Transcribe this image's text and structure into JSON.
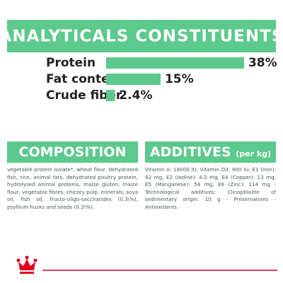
{
  "chart_data": {
    "type": "bar",
    "title": "ANALYTICALS CONSTITUENTS",
    "categories": [
      "Protein",
      "Fat content",
      "Crude fiber"
    ],
    "values": [
      38,
      15,
      2.4
    ],
    "value_labels": [
      "38%",
      "15%",
      "2.4%"
    ],
    "color": "#5cc98d"
  },
  "composition": {
    "title": "COMPOSITION",
    "text": "vegetable protein isolate*, wheat flour, dehydrated fish, rice, animal fats, dehydrated poultry protein, hydrolysed animal proteins, maize gluten, maize flour, vegetable fibres, chicory pulp, minerals, soya oil, fish oil, fructo-oligo-saccharides (0.3\\%), psyllium husks and seeds (0.2\\%)."
  },
  "additives": {
    "title": "ADDITIVES",
    "unit": "(per kg)",
    "text": "Vitamin A: 18000 IU, Vitamin D3: 900 IU, E1 (Iron): 42 mg, E2 (Iodine): 4.2 mg, E4 (Copper): 13 mg, E5 (Manganese): 54 mg, E6 (Zinc): 114 mg - Technological additives: Clinoptilolite of sedimentary origin: 10 g - Preservatives - Antioxidants."
  }
}
